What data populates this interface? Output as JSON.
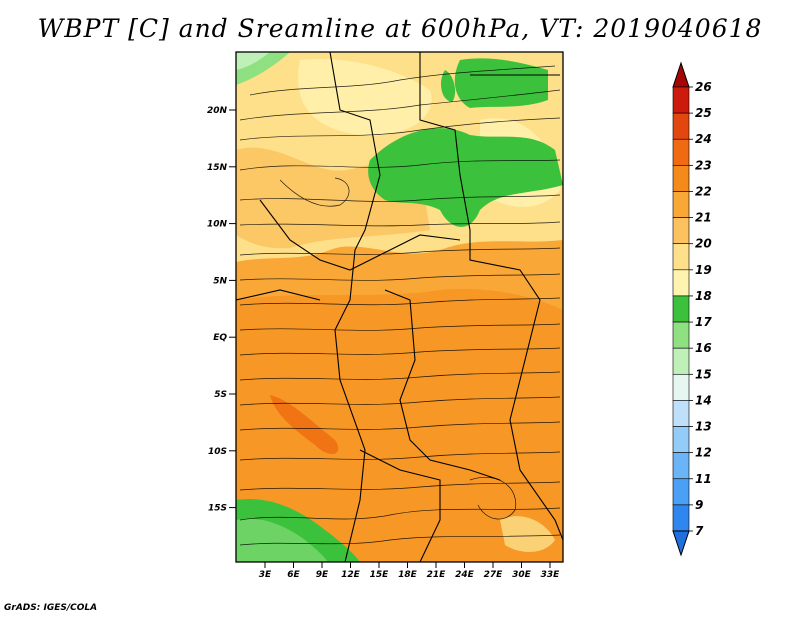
{
  "title": "WBPT [C] and Sreamline at 600hPa, VT: 2019040618",
  "credit": "GrADS: IGES/COLA",
  "map": {
    "lat_labels": [
      "20N",
      "15N",
      "10N",
      "5N",
      "EQ",
      "5S",
      "10S",
      "15S"
    ],
    "lon_labels": [
      "3E",
      "6E",
      "9E",
      "12E",
      "15E",
      "18E",
      "21E",
      "24E",
      "27E",
      "30E",
      "33E"
    ]
  },
  "colorbar": {
    "labels": [
      "7",
      "9",
      "11",
      "12",
      "13",
      "14",
      "15",
      "16",
      "17",
      "18",
      "19",
      "20",
      "21",
      "22",
      "23",
      "24",
      "25",
      "26"
    ],
    "colors": [
      "#1f6fe0",
      "#2f86ee",
      "#4aa0f5",
      "#6ab4f7",
      "#93cbf9",
      "#bfe0fb",
      "#e6f6f0",
      "#bff0b8",
      "#8ee080",
      "#3cc13c",
      "#fff3b0",
      "#fde089",
      "#fbc25f",
      "#f9a736",
      "#f48a19",
      "#ef6a10",
      "#e2470f",
      "#cc1a0c",
      "#a70404"
    ]
  }
}
